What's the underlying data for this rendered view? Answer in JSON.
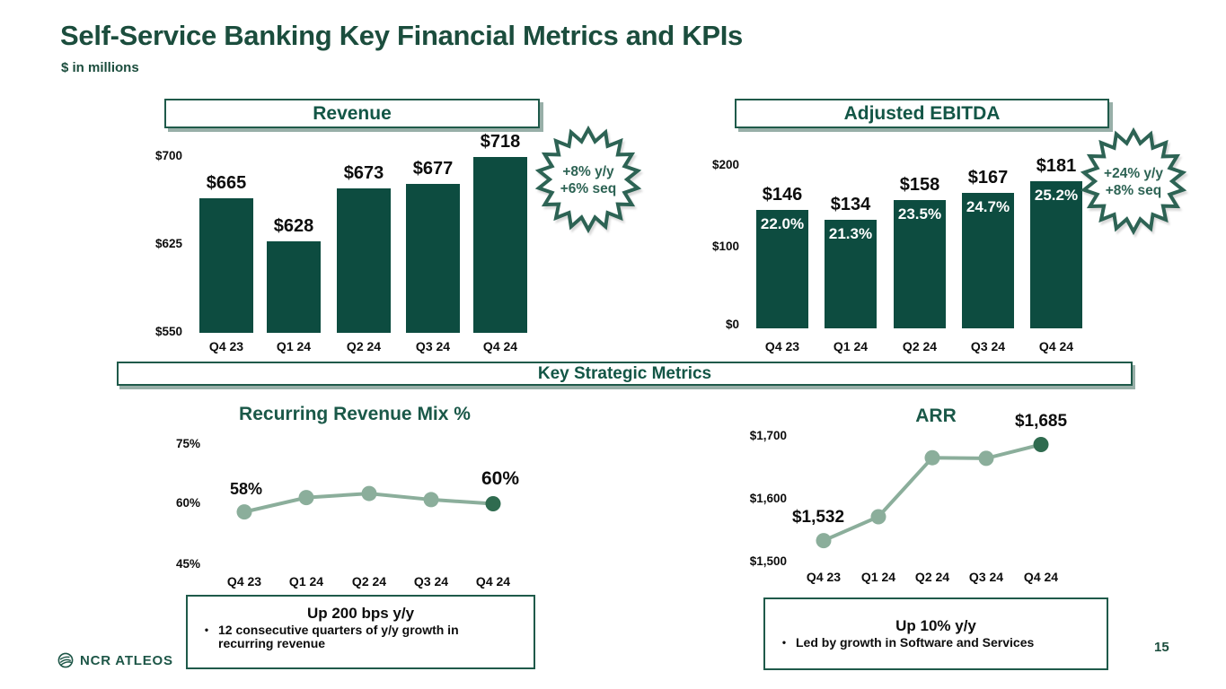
{
  "header": {
    "title": "Self-Service Banking Key Financial Metrics and KPIs",
    "subtitle": "$ in millions"
  },
  "strategic_banner": "Key Strategic Metrics",
  "footer": {
    "brand": "NCR ATLEOS",
    "page_number": "15"
  },
  "colors": {
    "bar_green": "#0d4c40",
    "heading_green": "#135646",
    "title_green": "#1b4d3d",
    "border_green": "#1f5a4a",
    "badge_green": "#2d6354",
    "line_light": "#8bae9b",
    "point_dark": "#2f6b4f"
  },
  "chart_data": [
    {
      "id": "revenue",
      "type": "bar",
      "title": "Revenue",
      "categories": [
        "Q4 23",
        "Q1 24",
        "Q2 24",
        "Q3 24",
        "Q4 24"
      ],
      "values": [
        665,
        628,
        673,
        677,
        718
      ],
      "value_labels": [
        "$665",
        "$628",
        "$673",
        "$677",
        "$718"
      ],
      "yticks": [
        "$700",
        "$625",
        "$550"
      ],
      "ylim": [
        550,
        700
      ],
      "ylabel": "",
      "xlabel": "",
      "grid": false,
      "badge": [
        "+8% y/y",
        "+6% seq"
      ]
    },
    {
      "id": "ebitda",
      "type": "bar",
      "title": "Adjusted EBITDA",
      "categories": [
        "Q4 23",
        "Q1 24",
        "Q2 24",
        "Q3 24",
        "Q4 24"
      ],
      "values": [
        146,
        134,
        158,
        167,
        181
      ],
      "value_labels": [
        "$146",
        "$134",
        "$158",
        "$167",
        "$181"
      ],
      "margin_labels": [
        "22.0%",
        "21.3%",
        "23.5%",
        "24.7%",
        "25.2%"
      ],
      "yticks": [
        "$200",
        "$100",
        "$0"
      ],
      "ylim": [
        0,
        200
      ],
      "ylabel": "",
      "xlabel": "",
      "grid": false,
      "badge": [
        "+24% y/y",
        "+8% seq"
      ]
    },
    {
      "id": "recurring",
      "type": "line",
      "title": "Recurring Revenue Mix %",
      "categories": [
        "Q4 23",
        "Q1 24",
        "Q2 24",
        "Q3 24",
        "Q4 24"
      ],
      "values": [
        58,
        61.5,
        62.5,
        61,
        60
      ],
      "yticks": [
        "75%",
        "60%",
        "45%"
      ],
      "ylim": [
        45,
        75
      ],
      "grid": false,
      "endpoint_labels": {
        "first": "58%",
        "last": "60%"
      },
      "callout": {
        "title": "Up 200 bps y/y",
        "bullets": [
          "12 consecutive quarters of y/y growth in recurring revenue"
        ]
      }
    },
    {
      "id": "arr",
      "type": "line",
      "title": "ARR",
      "categories": [
        "Q4 23",
        "Q1 24",
        "Q2 24",
        "Q3 24",
        "Q4 24"
      ],
      "values": [
        1532,
        1570,
        1664,
        1663,
        1685
      ],
      "yticks": [
        "$1,700",
        "$1,600",
        "$1,500"
      ],
      "ylim": [
        1500,
        1700
      ],
      "grid": false,
      "endpoint_labels": {
        "first": "$1,532",
        "last": "$1,685"
      },
      "callout": {
        "title": "Up 10% y/y",
        "bullets": [
          "Led by growth in Software and Services"
        ]
      }
    }
  ]
}
